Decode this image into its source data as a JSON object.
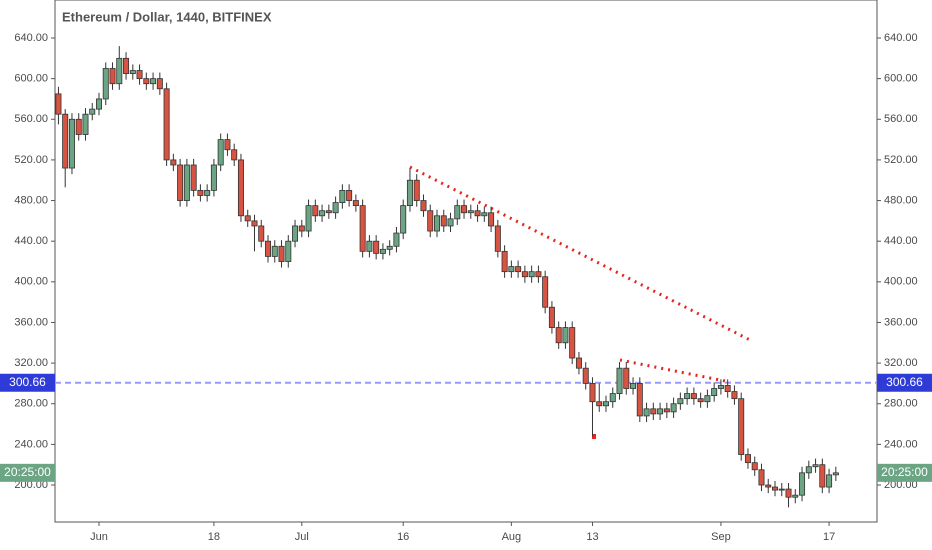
{
  "chart_data": {
    "type": "candlestick",
    "title": "Ethereum / Dollar, 1440, BITFINEX",
    "x": [
      "May 26",
      "May 27",
      "May 28",
      "May 29",
      "May 30",
      "May 31",
      "Jun 1",
      "Jun 2",
      "Jun 3",
      "Jun 4",
      "Jun 5",
      "Jun 6",
      "Jun 7",
      "Jun 8",
      "Jun 9",
      "Jun 10",
      "Jun 11",
      "Jun 12",
      "Jun 13",
      "Jun 14",
      "Jun 15",
      "Jun 16",
      "Jun 17",
      "Jun 18",
      "Jun 19",
      "Jun 20",
      "Jun 21",
      "Jun 22",
      "Jun 23",
      "Jun 24",
      "Jun 25",
      "Jun 26",
      "Jun 27",
      "Jun 28",
      "Jun 29",
      "Jun 30",
      "Jul 1",
      "Jul 2",
      "Jul 3",
      "Jul 4",
      "Jul 5",
      "Jul 6",
      "Jul 7",
      "Jul 8",
      "Jul 9",
      "Jul 10",
      "Jul 11",
      "Jul 12",
      "Jul 13",
      "Jul 14",
      "Jul 15",
      "Jul 16",
      "Jul 17",
      "Jul 18",
      "Jul 19",
      "Jul 20",
      "Jul 21",
      "Jul 22",
      "Jul 23",
      "Jul 24",
      "Jul 25",
      "Jul 26",
      "Jul 27",
      "Jul 28",
      "Jul 29",
      "Jul 30",
      "Jul 31",
      "Aug 1",
      "Aug 2",
      "Aug 3",
      "Aug 4",
      "Aug 5",
      "Aug 6",
      "Aug 7",
      "Aug 8",
      "Aug 9",
      "Aug 10",
      "Aug 11",
      "Aug 12",
      "Aug 13",
      "Aug 14",
      "Aug 15",
      "Aug 16",
      "Aug 17",
      "Aug 18",
      "Aug 19",
      "Aug 20",
      "Aug 21",
      "Aug 22",
      "Aug 23",
      "Aug 24",
      "Aug 25",
      "Aug 26",
      "Aug 27",
      "Aug 28",
      "Aug 29",
      "Aug 30",
      "Aug 31",
      "Sep 1",
      "Sep 2",
      "Sep 3",
      "Sep 4",
      "Sep 5",
      "Sep 6",
      "Sep 7",
      "Sep 8",
      "Sep 9",
      "Sep 10",
      "Sep 11",
      "Sep 12",
      "Sep 13",
      "Sep 14",
      "Sep 15",
      "Sep 16",
      "Sep 17",
      "Sep 18"
    ],
    "open": [
      585,
      565,
      512,
      560,
      545,
      565,
      570,
      580,
      610,
      595,
      620,
      605,
      608,
      600,
      595,
      600,
      590,
      520,
      515,
      480,
      515,
      490,
      485,
      490,
      515,
      540,
      530,
      520,
      465,
      460,
      455,
      440,
      425,
      435,
      420,
      440,
      455,
      450,
      475,
      465,
      470,
      468,
      478,
      490,
      480,
      475,
      430,
      440,
      428,
      432,
      435,
      448,
      475,
      500,
      480,
      470,
      450,
      465,
      455,
      462,
      475,
      468,
      470,
      465,
      468,
      455,
      430,
      410,
      415,
      410,
      405,
      410,
      405,
      375,
      355,
      340,
      355,
      325,
      315,
      300,
      282,
      278,
      282,
      290,
      315,
      295,
      300,
      268,
      275,
      270,
      275,
      272,
      280,
      285,
      290,
      285,
      282,
      288,
      295,
      298,
      292,
      285,
      230,
      222,
      215,
      200,
      198,
      195,
      196,
      188,
      190,
      212,
      218,
      220,
      198,
      210
    ],
    "high": [
      592,
      570,
      566,
      566,
      571,
      576,
      586,
      616,
      616,
      632,
      626,
      614,
      614,
      606,
      606,
      606,
      596,
      526,
      521,
      521,
      521,
      496,
      496,
      521,
      546,
      546,
      536,
      526,
      471,
      466,
      461,
      446,
      441,
      441,
      446,
      461,
      461,
      481,
      481,
      476,
      476,
      484,
      496,
      496,
      486,
      481,
      446,
      446,
      438,
      441,
      454,
      481,
      512,
      506,
      486,
      476,
      471,
      471,
      468,
      481,
      481,
      476,
      476,
      474,
      474,
      461,
      436,
      421,
      421,
      416,
      416,
      416,
      411,
      381,
      361,
      361,
      361,
      331,
      321,
      306,
      300,
      288,
      296,
      321,
      321,
      306,
      306,
      281,
      281,
      281,
      281,
      286,
      291,
      296,
      296,
      291,
      294,
      301,
      304,
      304,
      298,
      291,
      236,
      228,
      221,
      206,
      204,
      202,
      202,
      196,
      218,
      224,
      226,
      226,
      216,
      218
    ],
    "low": [
      555,
      493,
      506,
      539,
      539,
      559,
      564,
      574,
      589,
      589,
      599,
      599,
      594,
      589,
      589,
      584,
      514,
      509,
      474,
      474,
      484,
      479,
      479,
      484,
      509,
      524,
      514,
      459,
      454,
      430,
      434,
      419,
      419,
      414,
      414,
      434,
      444,
      444,
      459,
      459,
      462,
      462,
      472,
      474,
      469,
      424,
      424,
      422,
      422,
      426,
      429,
      442,
      469,
      474,
      464,
      444,
      444,
      449,
      449,
      456,
      462,
      462,
      459,
      459,
      449,
      424,
      404,
      404,
      404,
      399,
      399,
      399,
      369,
      349,
      334,
      334,
      319,
      309,
      294,
      248,
      272,
      272,
      276,
      284,
      289,
      289,
      262,
      262,
      264,
      264,
      266,
      266,
      274,
      279,
      279,
      276,
      276,
      282,
      289,
      286,
      279,
      224,
      216,
      209,
      194,
      192,
      189,
      189,
      178,
      182,
      184,
      206,
      212,
      192,
      192,
      204
    ],
    "close": [
      565,
      512,
      560,
      545,
      565,
      570,
      580,
      610,
      595,
      620,
      605,
      608,
      600,
      595,
      600,
      590,
      520,
      515,
      480,
      515,
      490,
      485,
      490,
      515,
      540,
      530,
      520,
      465,
      460,
      455,
      440,
      425,
      435,
      420,
      440,
      455,
      450,
      475,
      465,
      470,
      468,
      478,
      490,
      480,
      475,
      430,
      440,
      428,
      432,
      435,
      448,
      475,
      500,
      480,
      470,
      450,
      465,
      455,
      462,
      475,
      468,
      470,
      465,
      468,
      455,
      430,
      410,
      415,
      410,
      405,
      410,
      405,
      375,
      355,
      340,
      355,
      325,
      315,
      300,
      282,
      278,
      282,
      290,
      315,
      295,
      300,
      268,
      275,
      270,
      275,
      272,
      280,
      285,
      290,
      285,
      282,
      288,
      295,
      298,
      292,
      285,
      230,
      222,
      215,
      200,
      198,
      195,
      196,
      188,
      190,
      212,
      218,
      220,
      198,
      210,
      212
    ],
    "up_color": "#6ba583",
    "down_color": "#d75442",
    "ylim": [
      163.6,
      677.4
    ],
    "yticks": [
      {
        "value": 200,
        "label": "200.00"
      },
      {
        "value": 240,
        "label": "240.00"
      },
      {
        "value": 280,
        "label": "280.00"
      },
      {
        "value": 320,
        "label": "320.00"
      },
      {
        "value": 360,
        "label": "360.00"
      },
      {
        "value": 400,
        "label": "400.00"
      },
      {
        "value": 440,
        "label": "440.00"
      },
      {
        "value": 480,
        "label": "480.00"
      },
      {
        "value": 520,
        "label": "520.00"
      },
      {
        "value": 560,
        "label": "560.00"
      },
      {
        "value": 600,
        "label": "600.00"
      },
      {
        "value": 640,
        "label": "640.00"
      }
    ],
    "xticks": [
      {
        "value": "Jun 1",
        "label": "Jun"
      },
      {
        "value": "Jun 18",
        "label": "18"
      },
      {
        "value": "Jul 1",
        "label": "Jul"
      },
      {
        "value": "Jul 16",
        "label": "16"
      },
      {
        "value": "Aug 1",
        "label": "Aug"
      },
      {
        "value": "Aug 13",
        "label": "13"
      },
      {
        "value": "Sep 1",
        "label": "Sep"
      },
      {
        "value": "Sep 17",
        "label": "17"
      }
    ],
    "price_line": {
      "value": 300.66,
      "label": "300.66",
      "color": "#9999ff"
    },
    "countdown": "20:25:00",
    "countdown_color": "#6ba583"
  }
}
